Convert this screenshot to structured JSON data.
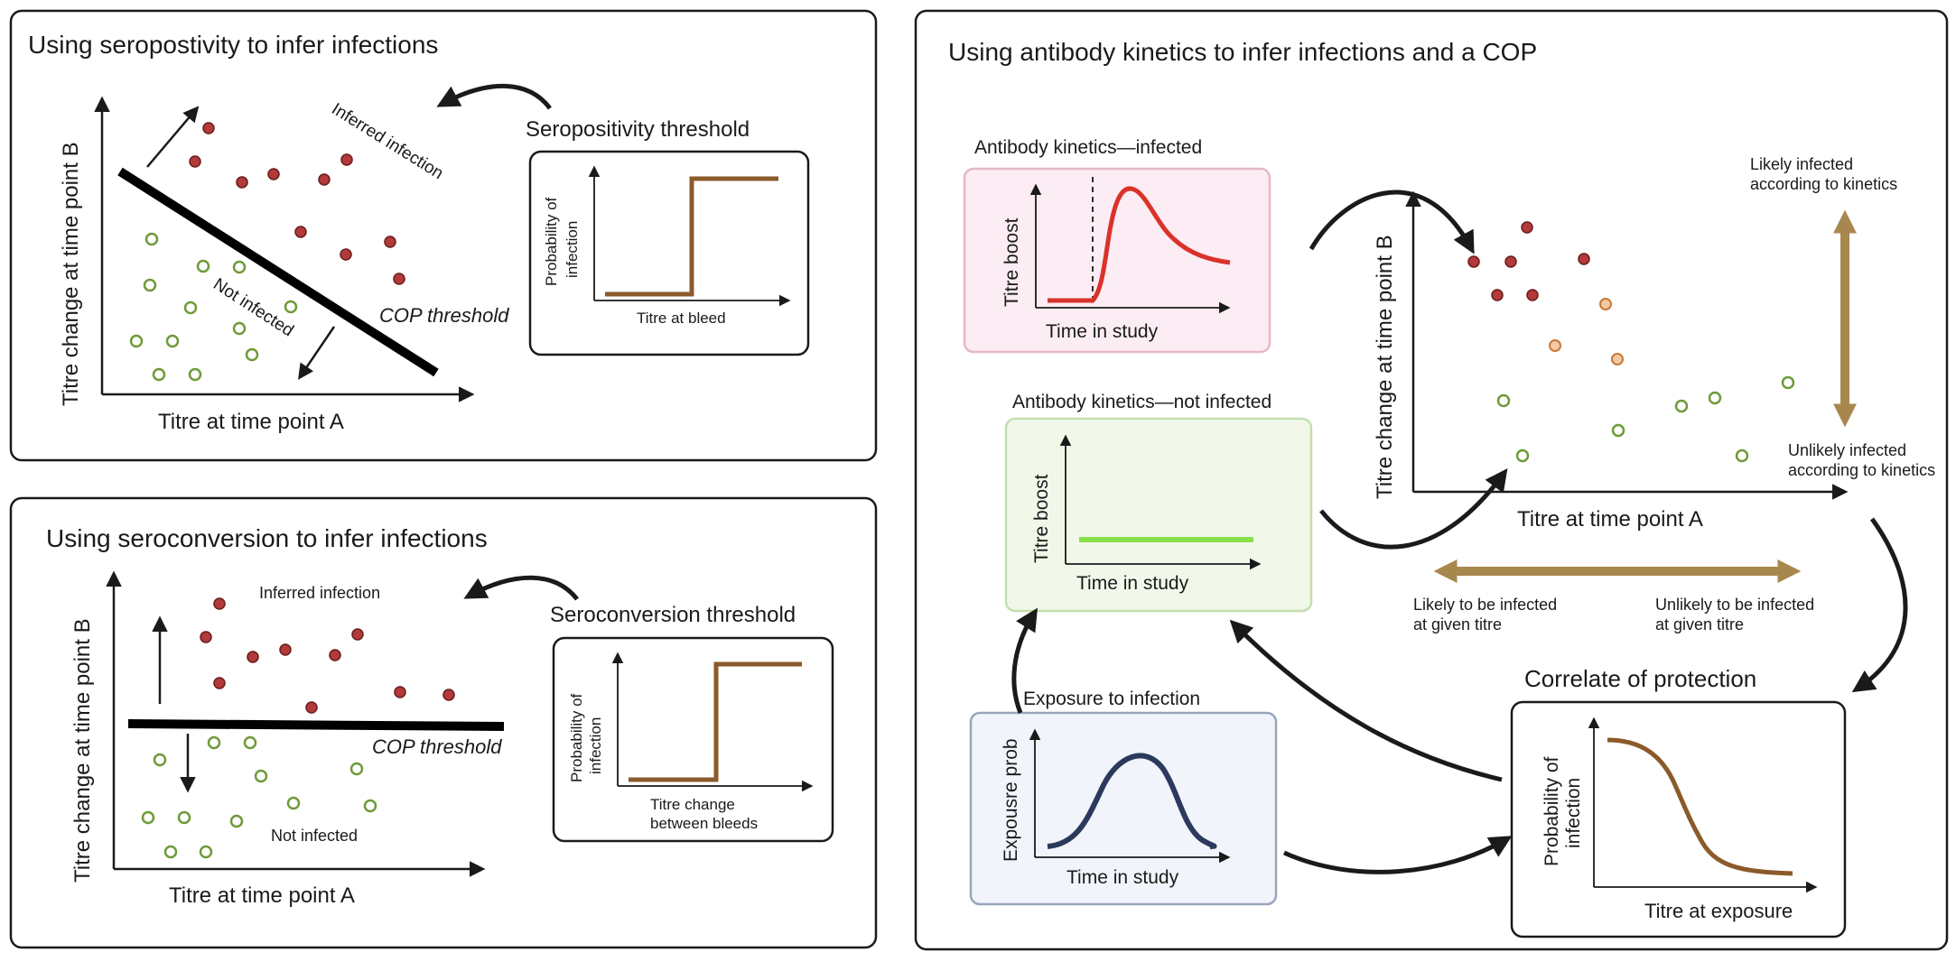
{
  "colors": {
    "infected_dot": "#b23a3a",
    "not_infected_dot": "#6f9a3a",
    "intermediate_dot": "#d4904a",
    "threshold_step": "#8b5a2b",
    "kinetics_infected_curve": "#d9322a",
    "kinetics_not_infected_line": "#8be04a",
    "exposure_curve": "#2b3a5c",
    "cop_curve": "#8b5a2b",
    "double_arrow": "#a8874e",
    "box_infected_bg": "#fcecf3",
    "box_infected_border": "#e6b8c8",
    "box_not_infected_bg": "#f1f8ea",
    "box_not_infected_border": "#c3dfae",
    "box_exposure_bg": "#f1f4fa",
    "box_exposure_border": "#9aa6bd"
  },
  "panel_seropositivity": {
    "title": "Using seropostivity to infer infections",
    "x_label": "Titre at time point A",
    "y_label": "Titre change at time point B",
    "inferred_label": "Inferred infection",
    "not_infected_label": "Not infected",
    "cop_label": "COP threshold",
    "threshold_title": "Seropositivity threshold",
    "threshold_y_label_1": "Probability of",
    "threshold_y_label_2": "infection",
    "threshold_x_label": "Titre at bleed"
  },
  "panel_seroconversion": {
    "title": "Using seroconversion to infer infections",
    "x_label": "Titre at time point A",
    "y_label": "Titre change at time point B",
    "inferred_label": "Inferred infection",
    "not_infected_label": "Not infected",
    "cop_label": "COP threshold",
    "threshold_title": "Seroconversion threshold",
    "threshold_y_label_1": "Probability of",
    "threshold_y_label_2": "infection",
    "threshold_x_label_1": "Titre change",
    "threshold_x_label_2": "between bleeds"
  },
  "panel_kinetics": {
    "title": "Using antibody kinetics to infer infections and a COP",
    "infected_box_title": "Antibody kinetics—infected",
    "infected_y_label": "Titre boost",
    "infected_x_label": "Time in study",
    "not_infected_box_title": "Antibody kinetics—not infected",
    "not_infected_y_label": "Titre boost",
    "not_infected_x_label": "Time in study",
    "exposure_box_title": "Exposure to infection",
    "exposure_y_label": "Expousre prob",
    "exposure_x_label": "Time in study",
    "scatter_x_label": "Titre at time point A",
    "scatter_y_label": "Titre change at time point B",
    "likely_kinetics_1": "Likely infected",
    "likely_kinetics_2": "according to kinetics",
    "unlikely_kinetics_1": "Unlikely infected",
    "unlikely_kinetics_2": "according to kinetics",
    "likely_titre_1": "Likely to be infected",
    "likely_titre_2": "at given titre",
    "unlikely_titre_1": "Unlikely to be infected",
    "unlikely_titre_2": "at given titre",
    "cop_title": "Correlate of protection",
    "cop_y_label_1": "Probability of",
    "cop_y_label_2": "infection",
    "cop_x_label": "Titre at exposure"
  }
}
